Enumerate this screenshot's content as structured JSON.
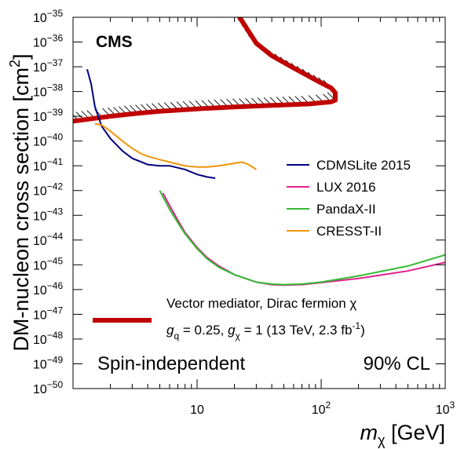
{
  "chart_data": {
    "type": "line",
    "xlabel": "m_χ [GeV]",
    "xlabel_main": "m",
    "xlabel_sub": "χ",
    "xlabel_unit": " [GeV]",
    "ylabel": "DM-nucleon cross section [cm²]",
    "ylabel_main": "DM-nucleon cross section [cm",
    "ylabel_sup": "2",
    "ylabel_end": "]",
    "x_scale": "log",
    "y_scale": "log",
    "xlim": [
      1,
      1000
    ],
    "ylim": [
      1e-50,
      1e-35
    ],
    "x_ticks": [
      {
        "value": 10,
        "label": "10"
      },
      {
        "value": 100,
        "label": "10",
        "exp": "2"
      },
      {
        "value": 1000,
        "label": "10",
        "exp": "3"
      }
    ],
    "y_ticks": [
      {
        "value": -35,
        "label": "10",
        "exp": "−35"
      },
      {
        "value": -36,
        "label": "10",
        "exp": "−36"
      },
      {
        "value": -37,
        "label": "10",
        "exp": "−37"
      },
      {
        "value": -38,
        "label": "10",
        "exp": "−38"
      },
      {
        "value": -39,
        "label": "10",
        "exp": "−39"
      },
      {
        "value": -40,
        "label": "10",
        "exp": "−40"
      },
      {
        "value": -41,
        "label": "10",
        "exp": "−41"
      },
      {
        "value": -42,
        "label": "10",
        "exp": "−42"
      },
      {
        "value": -43,
        "label": "10",
        "exp": "−43"
      },
      {
        "value": -44,
        "label": "10",
        "exp": "−44"
      },
      {
        "value": -45,
        "label": "10",
        "exp": "−45"
      },
      {
        "value": -46,
        "label": "10",
        "exp": "−46"
      },
      {
        "value": -47,
        "label": "10",
        "exp": "−47"
      },
      {
        "value": -48,
        "label": "10",
        "exp": "−48"
      },
      {
        "value": -49,
        "label": "10",
        "exp": "−49"
      },
      {
        "value": -50,
        "label": "10",
        "exp": "−50"
      }
    ],
    "series": [
      {
        "name": "CMS",
        "color": "#c00000",
        "x": [
          1.0,
          1.5,
          2.0,
          3.0,
          5.0,
          10,
          20,
          40,
          80,
          120,
          130,
          130,
          120,
          100,
          60,
          40,
          30,
          22
        ],
        "log10_y": [
          -39.2,
          -39.08,
          -39.0,
          -38.9,
          -38.8,
          -38.7,
          -38.62,
          -38.56,
          -38.5,
          -38.42,
          -38.35,
          -38.05,
          -37.85,
          -37.65,
          -37.05,
          -36.55,
          -36.05,
          -35.0
        ]
      },
      {
        "name": "CDMSLite 2015",
        "color": "#00007f",
        "x": [
          1.3,
          1.4,
          1.5,
          1.7,
          2.0,
          2.5,
          3.0,
          4.0,
          5.0,
          6.0,
          8.0,
          10,
          12,
          14
        ],
        "log10_y": [
          -37.1,
          -37.7,
          -38.6,
          -39.4,
          -39.9,
          -40.4,
          -40.7,
          -40.95,
          -41.0,
          -41.0,
          -41.15,
          -41.35,
          -41.45,
          -41.5
        ]
      },
      {
        "name": "LUX 2016",
        "color": "#e0218a",
        "x": [
          5.3,
          6.0,
          7.0,
          8.0,
          10,
          12,
          15,
          20,
          30,
          40,
          50,
          70,
          100,
          200,
          500,
          1000
        ],
        "log10_y": [
          -42.1,
          -42.6,
          -43.2,
          -43.7,
          -44.3,
          -44.7,
          -45.05,
          -45.4,
          -45.7,
          -45.8,
          -45.82,
          -45.8,
          -45.72,
          -45.55,
          -45.25,
          -44.9
        ]
      },
      {
        "name": "PandaX-II",
        "color": "#33bb33",
        "x": [
          5.0,
          5.5,
          6.0,
          7.0,
          8.0,
          10,
          12,
          15,
          20,
          30,
          40,
          50,
          70,
          100,
          200,
          500,
          1000
        ],
        "log10_y": [
          -42.0,
          -42.4,
          -42.75,
          -43.3,
          -43.75,
          -44.35,
          -44.75,
          -45.1,
          -45.4,
          -45.7,
          -45.78,
          -45.8,
          -45.78,
          -45.7,
          -45.45,
          -45.05,
          -44.6
        ]
      },
      {
        "name": "CRESST-II",
        "color": "#f0950a",
        "x": [
          1.5,
          1.7,
          2.0,
          2.5,
          3.0,
          3.5,
          4.0,
          5.0,
          6.0,
          8.0,
          10,
          12,
          15,
          20,
          23,
          26,
          30
        ],
        "log10_y": [
          -39.3,
          -39.35,
          -39.6,
          -40.0,
          -40.3,
          -40.5,
          -40.62,
          -40.75,
          -40.85,
          -41.0,
          -41.05,
          -41.05,
          -41.0,
          -40.9,
          -40.85,
          -40.95,
          -41.15
        ]
      }
    ],
    "legend": {
      "placement": "right",
      "entries": [
        "CDMSLite 2015",
        "LUX 2016",
        "PandaX-II",
        "CRESST-II"
      ]
    },
    "cms_legend": {
      "line1": "Vector mediator, Dirac fermion χ",
      "line2_g": "g",
      "line2_q": "q",
      "line2_mid": " = 0.25, ",
      "line2_chi": "χ",
      "line2_tail": " = 1 (13 TeV, 2.3 fb",
      "line2_exp": "-1",
      "line2_end": ")"
    },
    "annotations": {
      "experiment": "CMS",
      "analysis": "Spin-independent",
      "cl": "90% CL"
    }
  }
}
